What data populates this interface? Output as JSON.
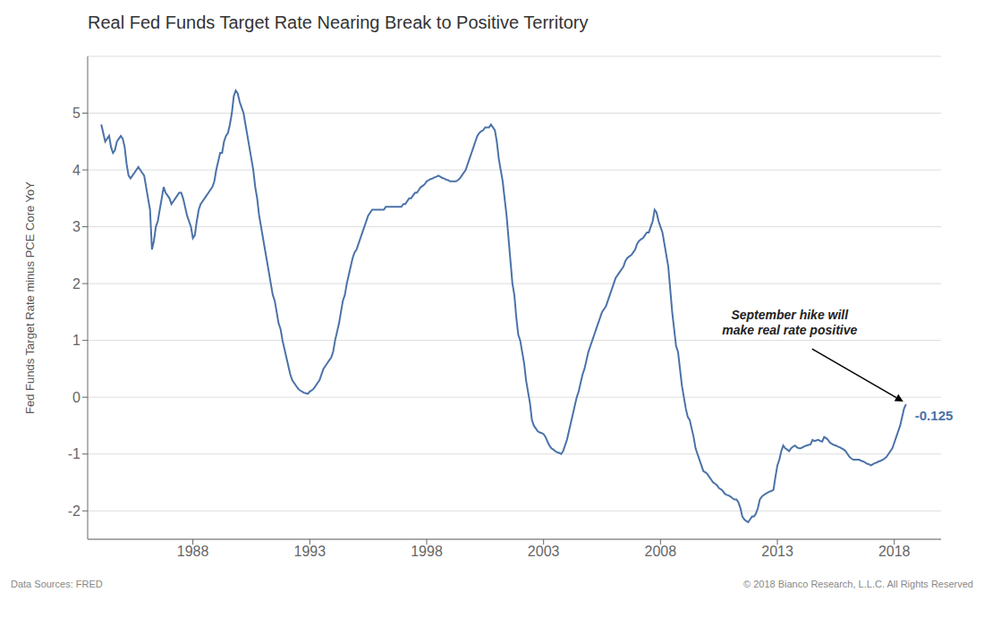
{
  "chart_data": {
    "type": "line",
    "title": "Real Fed Funds Target Rate Nearing Break to Positive Territory",
    "ylabel": "Fed Funds Target Rate minus PCE Core YoY",
    "color": "#4a72a8",
    "grid": true,
    "xlim": [
      1983.5,
      2020.0
    ],
    "xticks": [
      1988,
      1993,
      1998,
      2003,
      2008,
      2013,
      2018
    ],
    "ylim": [
      -2.5,
      6.0
    ],
    "yticks": [
      -2,
      -1,
      0,
      1,
      2,
      3,
      4,
      5
    ],
    "annotations": [
      "September hike will\nmake real rate positive",
      "-0.125"
    ],
    "footer": [
      "Data Sources: FRED",
      "© 2018 Bianco Research, L.L.C. All Rights Reserved"
    ],
    "x": [
      1984.083,
      1984.167,
      1984.25,
      1984.333,
      1984.417,
      1984.5,
      1984.583,
      1984.667,
      1984.75,
      1984.833,
      1984.917,
      1985.0,
      1985.083,
      1985.167,
      1985.25,
      1985.333,
      1985.417,
      1985.5,
      1985.583,
      1985.667,
      1985.75,
      1985.833,
      1985.917,
      1986.0,
      1986.083,
      1986.167,
      1986.25,
      1986.333,
      1986.417,
      1986.5,
      1986.583,
      1986.667,
      1986.75,
      1986.833,
      1986.917,
      1987.0,
      1987.083,
      1987.167,
      1987.25,
      1987.333,
      1987.417,
      1987.5,
      1987.583,
      1987.667,
      1987.75,
      1987.833,
      1987.917,
      1988.0,
      1988.083,
      1988.167,
      1988.25,
      1988.333,
      1988.417,
      1988.5,
      1988.583,
      1988.667,
      1988.75,
      1988.833,
      1988.917,
      1989.0,
      1989.083,
      1989.167,
      1989.25,
      1989.333,
      1989.417,
      1989.5,
      1989.583,
      1989.667,
      1989.75,
      1989.833,
      1989.917,
      1990.0,
      1990.083,
      1990.167,
      1990.25,
      1990.333,
      1990.417,
      1990.5,
      1990.583,
      1990.667,
      1990.75,
      1990.833,
      1990.917,
      1991.0,
      1991.083,
      1991.167,
      1991.25,
      1991.333,
      1991.417,
      1991.5,
      1991.583,
      1991.667,
      1991.75,
      1991.833,
      1991.917,
      1992.0,
      1992.083,
      1992.167,
      1992.25,
      1992.333,
      1992.417,
      1992.5,
      1992.583,
      1992.667,
      1992.75,
      1992.833,
      1992.917,
      1993.0,
      1993.083,
      1993.167,
      1993.25,
      1993.333,
      1993.417,
      1993.5,
      1993.583,
      1993.667,
      1993.75,
      1993.833,
      1993.917,
      1994.0,
      1994.083,
      1994.167,
      1994.25,
      1994.333,
      1994.417,
      1994.5,
      1994.583,
      1994.667,
      1994.75,
      1994.833,
      1994.917,
      1995.0,
      1995.083,
      1995.167,
      1995.25,
      1995.333,
      1995.417,
      1995.5,
      1995.583,
      1995.667,
      1995.75,
      1995.833,
      1995.917,
      1996.0,
      1996.083,
      1996.167,
      1996.25,
      1996.333,
      1996.417,
      1996.5,
      1996.583,
      1996.667,
      1996.75,
      1996.833,
      1996.917,
      1997.0,
      1997.083,
      1997.167,
      1997.25,
      1997.333,
      1997.417,
      1997.5,
      1997.583,
      1997.667,
      1997.75,
      1997.833,
      1997.917,
      1998.0,
      1998.083,
      1998.167,
      1998.25,
      1998.333,
      1998.417,
      1998.5,
      1998.583,
      1998.667,
      1998.75,
      1998.833,
      1998.917,
      1999.0,
      1999.083,
      1999.167,
      1999.25,
      1999.333,
      1999.417,
      1999.5,
      1999.583,
      1999.667,
      1999.75,
      1999.833,
      1999.917,
      2000.0,
      2000.083,
      2000.167,
      2000.25,
      2000.333,
      2000.417,
      2000.5,
      2000.583,
      2000.667,
      2000.75,
      2000.833,
      2000.917,
      2001.0,
      2001.083,
      2001.167,
      2001.25,
      2001.333,
      2001.417,
      2001.5,
      2001.583,
      2001.667,
      2001.75,
      2001.833,
      2001.917,
      2002.0,
      2002.083,
      2002.167,
      2002.25,
      2002.333,
      2002.417,
      2002.5,
      2002.583,
      2002.667,
      2002.75,
      2002.833,
      2002.917,
      2003.0,
      2003.083,
      2003.167,
      2003.25,
      2003.333,
      2003.417,
      2003.5,
      2003.583,
      2003.667,
      2003.75,
      2003.833,
      2003.917,
      2004.0,
      2004.083,
      2004.167,
      2004.25,
      2004.333,
      2004.417,
      2004.5,
      2004.583,
      2004.667,
      2004.75,
      2004.833,
      2004.917,
      2005.0,
      2005.083,
      2005.167,
      2005.25,
      2005.333,
      2005.417,
      2005.5,
      2005.583,
      2005.667,
      2005.75,
      2005.833,
      2005.917,
      2006.0,
      2006.083,
      2006.167,
      2006.25,
      2006.333,
      2006.417,
      2006.5,
      2006.583,
      2006.667,
      2006.75,
      2006.833,
      2006.917,
      2007.0,
      2007.083,
      2007.167,
      2007.25,
      2007.333,
      2007.417,
      2007.5,
      2007.583,
      2007.667,
      2007.75,
      2007.833,
      2007.917,
      2008.0,
      2008.083,
      2008.167,
      2008.25,
      2008.333,
      2008.417,
      2008.5,
      2008.583,
      2008.667,
      2008.75,
      2008.833,
      2008.917,
      2009.0,
      2009.083,
      2009.167,
      2009.25,
      2009.333,
      2009.417,
      2009.5,
      2009.583,
      2009.667,
      2009.75,
      2009.833,
      2009.917,
      2010.0,
      2010.083,
      2010.167,
      2010.25,
      2010.333,
      2010.417,
      2010.5,
      2010.583,
      2010.667,
      2010.75,
      2010.833,
      2010.917,
      2011.0,
      2011.083,
      2011.167,
      2011.25,
      2011.333,
      2011.417,
      2011.5,
      2011.583,
      2011.667,
      2011.75,
      2011.833,
      2011.917,
      2012.0,
      2012.083,
      2012.167,
      2012.25,
      2012.333,
      2012.417,
      2012.5,
      2012.583,
      2012.667,
      2012.75,
      2012.833,
      2012.917,
      2013.0,
      2013.083,
      2013.167,
      2013.25,
      2013.333,
      2013.417,
      2013.5,
      2013.583,
      2013.667,
      2013.75,
      2013.833,
      2013.917,
      2014.0,
      2014.083,
      2014.167,
      2014.25,
      2014.333,
      2014.417,
      2014.5,
      2014.583,
      2014.667,
      2014.75,
      2014.833,
      2014.917,
      2015.0,
      2015.083,
      2015.167,
      2015.25,
      2015.333,
      2015.417,
      2015.5,
      2015.583,
      2015.667,
      2015.75,
      2015.833,
      2015.917,
      2016.0,
      2016.083,
      2016.167,
      2016.25,
      2016.333,
      2016.417,
      2016.5,
      2016.583,
      2016.667,
      2016.75,
      2016.833,
      2016.917,
      2017.0,
      2017.083,
      2017.167,
      2017.25,
      2017.333,
      2017.417,
      2017.5,
      2017.583,
      2017.667,
      2017.75,
      2017.833,
      2017.917,
      2018.0,
      2018.083,
      2018.167,
      2018.25,
      2018.333,
      2018.417,
      2018.5
    ],
    "values": [
      4.8,
      4.65,
      4.5,
      4.55,
      4.6,
      4.4,
      4.3,
      4.35,
      4.5,
      4.55,
      4.6,
      4.55,
      4.4,
      4.1,
      3.9,
      3.85,
      3.9,
      3.95,
      4.0,
      4.05,
      4.0,
      3.95,
      3.9,
      3.7,
      3.5,
      3.3,
      2.6,
      2.75,
      3.0,
      3.1,
      3.3,
      3.5,
      3.7,
      3.6,
      3.55,
      3.5,
      3.4,
      3.45,
      3.5,
      3.55,
      3.6,
      3.6,
      3.5,
      3.35,
      3.2,
      3.1,
      3.0,
      2.8,
      2.85,
      3.1,
      3.3,
      3.4,
      3.45,
      3.5,
      3.55,
      3.6,
      3.65,
      3.7,
      3.8,
      4.0,
      4.15,
      4.3,
      4.3,
      4.5,
      4.6,
      4.65,
      4.8,
      5.0,
      5.3,
      5.4,
      5.35,
      5.2,
      5.1,
      5.0,
      4.8,
      4.6,
      4.4,
      4.2,
      4.0,
      3.7,
      3.5,
      3.2,
      3.0,
      2.8,
      2.6,
      2.4,
      2.2,
      2.0,
      1.8,
      1.7,
      1.5,
      1.3,
      1.2,
      1.0,
      0.85,
      0.7,
      0.55,
      0.4,
      0.3,
      0.25,
      0.2,
      0.15,
      0.12,
      0.1,
      0.08,
      0.07,
      0.06,
      0.1,
      0.12,
      0.15,
      0.2,
      0.25,
      0.3,
      0.4,
      0.5,
      0.55,
      0.6,
      0.65,
      0.7,
      0.8,
      1.0,
      1.15,
      1.3,
      1.5,
      1.7,
      1.8,
      2.0,
      2.15,
      2.3,
      2.45,
      2.55,
      2.6,
      2.7,
      2.8,
      2.9,
      3.0,
      3.1,
      3.2,
      3.25,
      3.3,
      3.3,
      3.3,
      3.3,
      3.3,
      3.3,
      3.3,
      3.35,
      3.35,
      3.35,
      3.35,
      3.35,
      3.35,
      3.35,
      3.35,
      3.35,
      3.4,
      3.4,
      3.45,
      3.5,
      3.5,
      3.55,
      3.6,
      3.6,
      3.65,
      3.7,
      3.72,
      3.75,
      3.8,
      3.82,
      3.84,
      3.85,
      3.87,
      3.88,
      3.9,
      3.88,
      3.86,
      3.85,
      3.83,
      3.82,
      3.8,
      3.8,
      3.8,
      3.8,
      3.82,
      3.85,
      3.9,
      3.95,
      4.0,
      4.1,
      4.2,
      4.3,
      4.4,
      4.5,
      4.6,
      4.65,
      4.68,
      4.7,
      4.75,
      4.75,
      4.75,
      4.8,
      4.75,
      4.7,
      4.5,
      4.2,
      4.0,
      3.8,
      3.5,
      3.2,
      2.8,
      2.4,
      2.0,
      1.8,
      1.4,
      1.1,
      1.0,
      0.8,
      0.6,
      0.3,
      0.1,
      -0.1,
      -0.4,
      -0.5,
      -0.55,
      -0.6,
      -0.62,
      -0.63,
      -0.65,
      -0.7,
      -0.78,
      -0.85,
      -0.9,
      -0.92,
      -0.95,
      -0.97,
      -0.98,
      -1.0,
      -0.95,
      -0.85,
      -0.75,
      -0.6,
      -0.45,
      -0.3,
      -0.15,
      0.0,
      0.1,
      0.25,
      0.4,
      0.5,
      0.65,
      0.8,
      0.9,
      1.0,
      1.1,
      1.2,
      1.3,
      1.4,
      1.5,
      1.55,
      1.6,
      1.7,
      1.8,
      1.9,
      2.0,
      2.1,
      2.15,
      2.2,
      2.25,
      2.3,
      2.4,
      2.45,
      2.48,
      2.5,
      2.55,
      2.6,
      2.7,
      2.75,
      2.78,
      2.8,
      2.85,
      2.9,
      2.9,
      3.0,
      3.1,
      3.3,
      3.25,
      3.1,
      3.0,
      2.9,
      2.7,
      2.5,
      2.3,
      1.9,
      1.5,
      1.2,
      0.9,
      0.8,
      0.5,
      0.2,
      0.0,
      -0.2,
      -0.35,
      -0.4,
      -0.55,
      -0.7,
      -0.9,
      -1.0,
      -1.1,
      -1.2,
      -1.3,
      -1.32,
      -1.35,
      -1.4,
      -1.45,
      -1.5,
      -1.52,
      -1.55,
      -1.6,
      -1.62,
      -1.65,
      -1.7,
      -1.72,
      -1.73,
      -1.75,
      -1.78,
      -1.8,
      -1.8,
      -1.85,
      -1.95,
      -2.1,
      -2.15,
      -2.18,
      -2.2,
      -2.15,
      -2.1,
      -2.1,
      -2.05,
      -1.95,
      -1.8,
      -1.75,
      -1.72,
      -1.7,
      -1.68,
      -1.66,
      -1.65,
      -1.63,
      -1.4,
      -1.2,
      -1.1,
      -0.95,
      -0.85,
      -0.9,
      -0.92,
      -0.95,
      -0.9,
      -0.87,
      -0.85,
      -0.88,
      -0.9,
      -0.9,
      -0.88,
      -0.86,
      -0.85,
      -0.84,
      -0.83,
      -0.75,
      -0.77,
      -0.76,
      -0.75,
      -0.77,
      -0.78,
      -0.7,
      -0.72,
      -0.75,
      -0.8,
      -0.82,
      -0.84,
      -0.85,
      -0.87,
      -0.88,
      -0.9,
      -0.92,
      -0.95,
      -1.0,
      -1.05,
      -1.08,
      -1.1,
      -1.1,
      -1.1,
      -1.1,
      -1.12,
      -1.13,
      -1.15,
      -1.17,
      -1.18,
      -1.2,
      -1.18,
      -1.16,
      -1.15,
      -1.13,
      -1.12,
      -1.1,
      -1.08,
      -1.05,
      -1.0,
      -0.95,
      -0.9,
      -0.8,
      -0.7,
      -0.6,
      -0.5,
      -0.35,
      -0.2,
      -0.125
    ]
  }
}
